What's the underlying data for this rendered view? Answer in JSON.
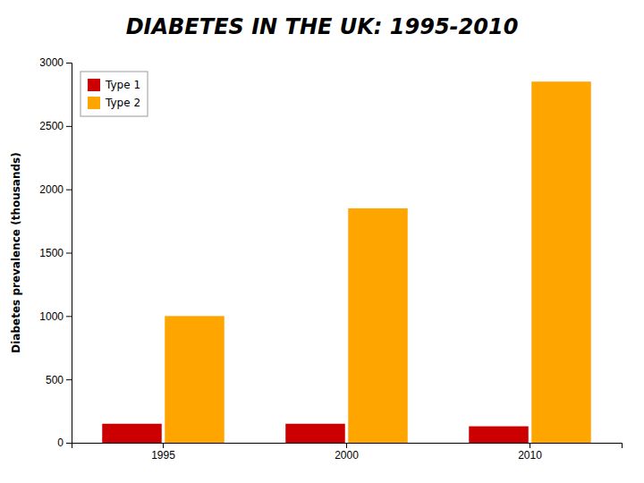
{
  "chart_data": {
    "type": "bar",
    "title": "DIABETES IN THE UK: 1995-2010",
    "y_label": "Diabetes prevalence (thousands)",
    "categories": [
      "1995",
      "2000",
      "2010"
    ],
    "series": [
      {
        "name": "Type 1",
        "color": "#CC0000",
        "values": [
          150,
          150,
          130
        ]
      },
      {
        "name": "Type 2",
        "color": "#FFA500",
        "values": [
          1000,
          1850,
          2850
        ]
      }
    ],
    "ylim": [
      0,
      3000
    ],
    "yticks": [
      0,
      500,
      1000,
      1500,
      2000,
      2500,
      3000
    ],
    "legend": "upper left"
  }
}
